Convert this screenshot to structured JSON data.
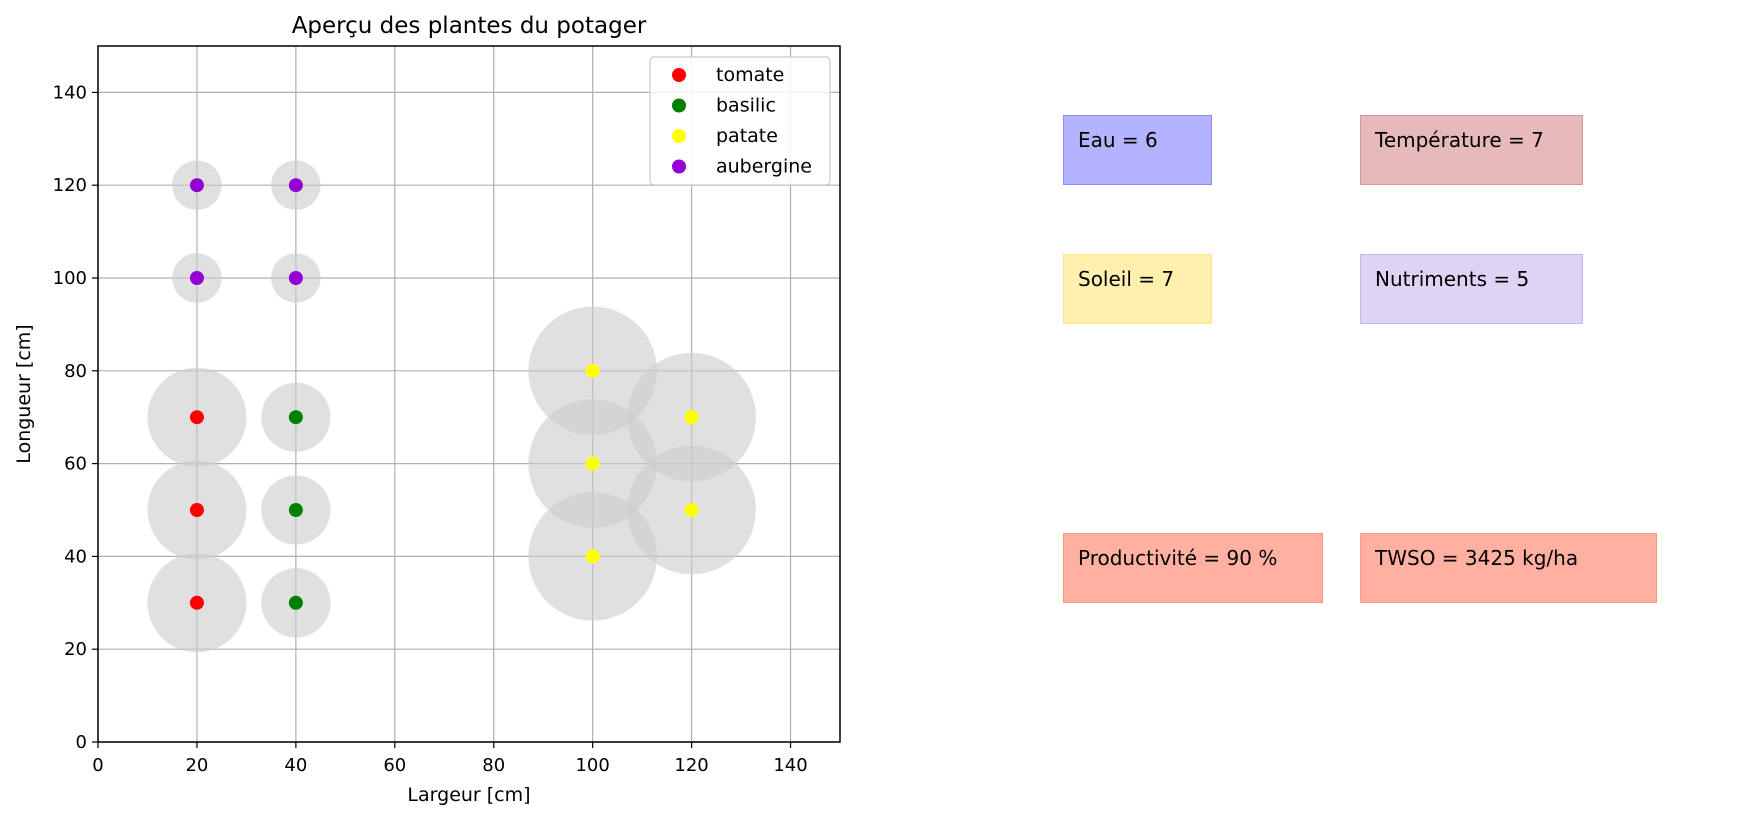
{
  "chart_data": {
    "type": "scatter",
    "title": "Aperçu des plantes du potager",
    "xlabel": "Largeur [cm]",
    "ylabel": "Longueur [cm]",
    "xlim": [
      0,
      150
    ],
    "ylim": [
      0,
      150
    ],
    "xticks": [
      "0",
      "20",
      "40",
      "60",
      "80",
      "100",
      "120",
      "140"
    ],
    "yticks": [
      "0",
      "20",
      "40",
      "60",
      "80",
      "100",
      "120",
      "140"
    ],
    "grid": true,
    "legend_position": "top-right",
    "series": [
      {
        "name": "tomate",
        "color": "#ff0000",
        "points": [
          {
            "x": 20,
            "y": 30
          },
          {
            "x": 20,
            "y": 50
          },
          {
            "x": 20,
            "y": 70
          }
        ],
        "spread_radius": 10
      },
      {
        "name": "basilic",
        "color": "#008000",
        "points": [
          {
            "x": 40,
            "y": 30
          },
          {
            "x": 40,
            "y": 50
          },
          {
            "x": 40,
            "y": 70
          }
        ],
        "spread_radius": 7
      },
      {
        "name": "patate",
        "color": "#ffff00",
        "points": [
          {
            "x": 100,
            "y": 40
          },
          {
            "x": 100,
            "y": 60
          },
          {
            "x": 100,
            "y": 80
          },
          {
            "x": 120,
            "y": 50
          },
          {
            "x": 120,
            "y": 70
          }
        ],
        "spread_radius": 13
      },
      {
        "name": "aubergine",
        "color": "#9400d3",
        "points": [
          {
            "x": 20,
            "y": 100
          },
          {
            "x": 20,
            "y": 120
          },
          {
            "x": 40,
            "y": 100
          },
          {
            "x": 40,
            "y": 120
          }
        ],
        "spread_radius": 5
      }
    ],
    "spread_color": "#cccccc"
  },
  "info_boxes": [
    {
      "id": "eau",
      "text": "Eau = 6",
      "color": "#b3b3ff",
      "border": "#8c8cf0"
    },
    {
      "id": "temperature",
      "text": "Température = 7",
      "color": "#e6baba",
      "border": "#dc9898"
    },
    {
      "id": "soleil",
      "text": "Soleil = 7",
      "color": "#fff0b0",
      "border": "#ffe38a"
    },
    {
      "id": "nutriments",
      "text": "Nutriments = 5",
      "color": "#ded3f4",
      "border": "#c6b6ea"
    },
    {
      "id": "productivite",
      "text": "Productivité = 90 %",
      "color": "#ffb0a0",
      "border": "#ff9a86"
    },
    {
      "id": "twso",
      "text": "TWSO = 3425 kg/ha",
      "color": "#ffb0a0",
      "border": "#ff9a86"
    }
  ]
}
